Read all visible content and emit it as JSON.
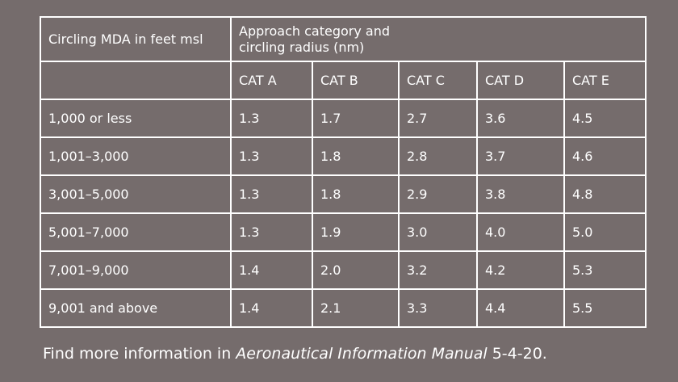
{
  "table": {
    "header_col1": "Circling MDA in feet msl",
    "header_group_line1": "Approach category and",
    "header_group_line2": "circling radius (nm)",
    "categories": [
      "CAT A",
      "CAT B",
      "CAT C",
      "CAT D",
      "CAT E"
    ],
    "rows": [
      {
        "label": "1,000 or less",
        "values": [
          "1.3",
          "1.7",
          "2.7",
          "3.6",
          "4.5"
        ]
      },
      {
        "label": "1,001–3,000",
        "values": [
          "1.3",
          "1.8",
          "2.8",
          "3.7",
          "4.6"
        ]
      },
      {
        "label": "3,001–5,000",
        "values": [
          "1.3",
          "1.8",
          "2.9",
          "3.8",
          "4.8"
        ]
      },
      {
        "label": "5,001–7,000",
        "values": [
          "1.3",
          "1.9",
          "3.0",
          "4.0",
          "5.0"
        ]
      },
      {
        "label": "7,001–9,000",
        "values": [
          "1.4",
          "2.0",
          "3.2",
          "4.2",
          "5.3"
        ]
      },
      {
        "label": "9,001 and above",
        "values": [
          "1.4",
          "2.1",
          "3.3",
          "4.4",
          "5.5"
        ]
      }
    ]
  },
  "footer": {
    "prefix": "Find more information in ",
    "title": "Aeronautical Information Manual",
    "suffix": " 5-4-20."
  }
}
